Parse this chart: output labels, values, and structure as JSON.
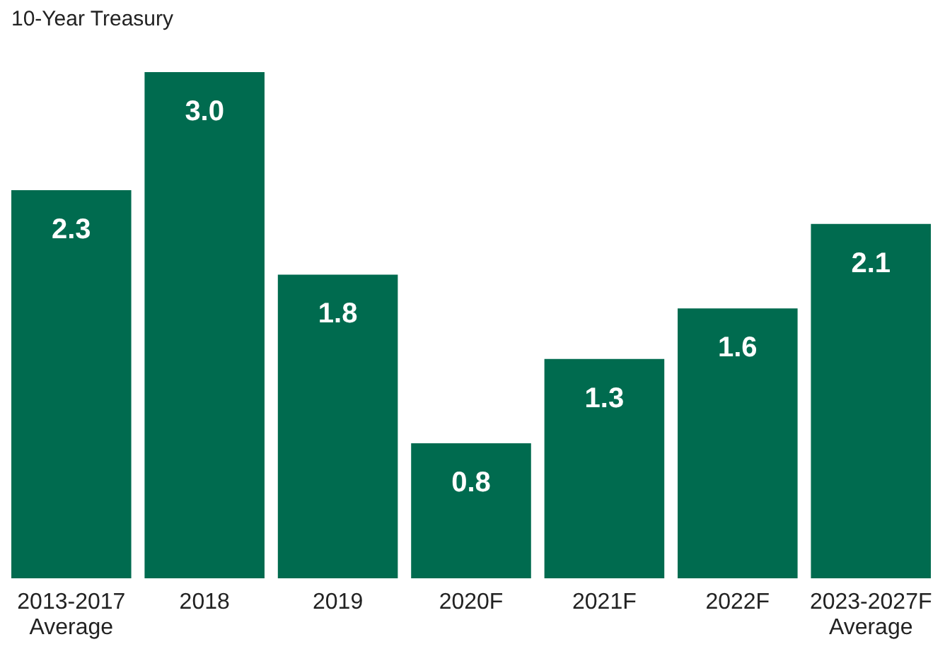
{
  "chart_data": {
    "type": "bar",
    "title": "10-Year Treasury",
    "categories": [
      "2013-2017\nAverage",
      "2018",
      "2019",
      "2020F",
      "2021F",
      "2022F",
      "2023-2027F\nAverage"
    ],
    "values": [
      2.3,
      3.0,
      1.8,
      0.8,
      1.3,
      1.6,
      2.1
    ],
    "value_labels": [
      "2.3",
      "3.0",
      "1.8",
      "0.8",
      "1.3",
      "1.6",
      "2.1"
    ],
    "color": "#006b4f",
    "grid": false
  }
}
